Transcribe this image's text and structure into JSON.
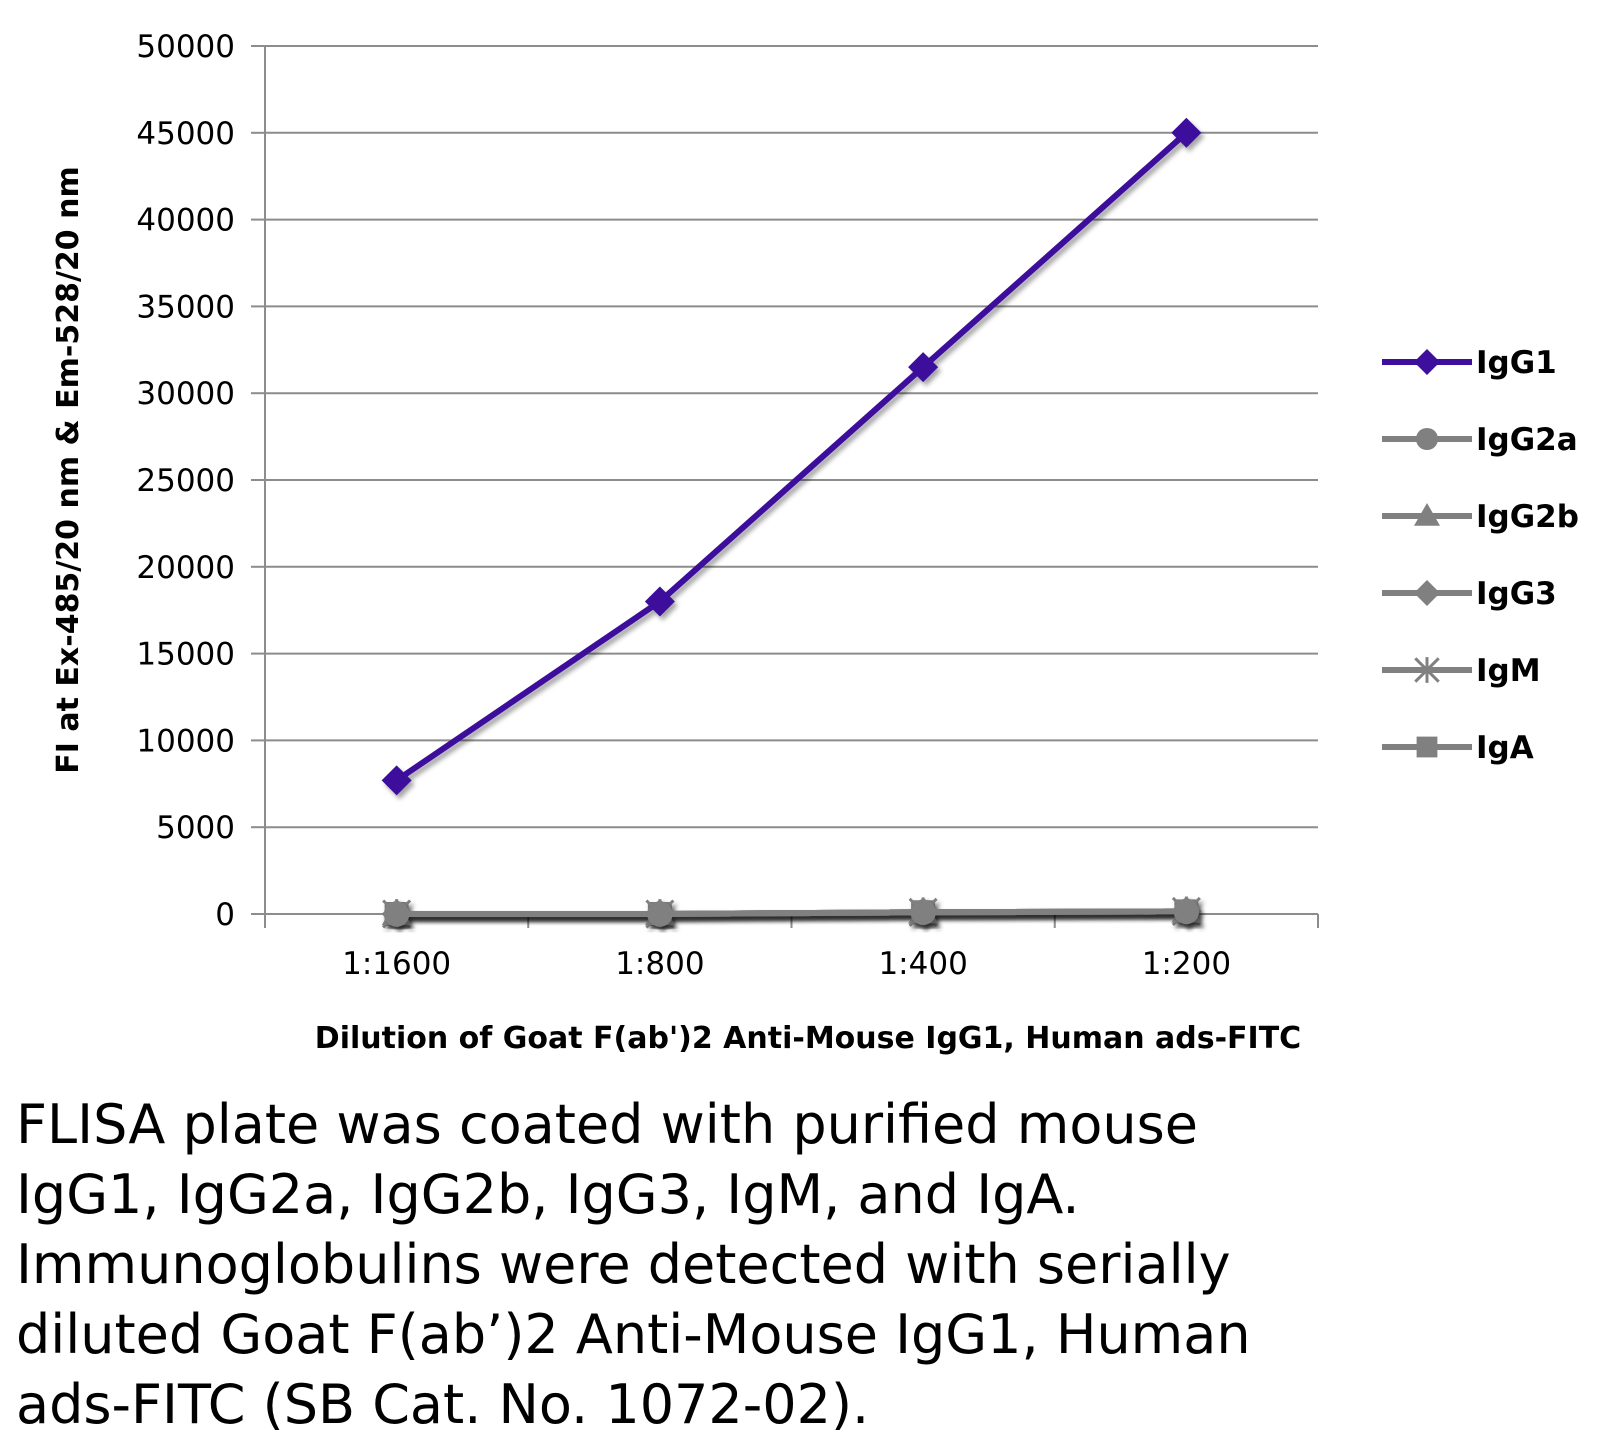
{
  "chart_data": {
    "type": "line",
    "categories": [
      "1:1600",
      "1:800",
      "1:400",
      "1:200"
    ],
    "xlabel": "Dilution of Goat F(ab')2 Anti-Mouse IgG1, Human ads-FITC",
    "ylabel": "FI at Ex-485/20 nm & Em-528/20 nm",
    "ylim": [
      0,
      50000
    ],
    "yticks": [
      0,
      5000,
      10000,
      15000,
      20000,
      25000,
      30000,
      35000,
      40000,
      45000,
      50000
    ],
    "grid": true,
    "legend_position": "right",
    "series": [
      {
        "name": "IgG1",
        "values": [
          7700,
          18000,
          31500,
          45000
        ],
        "color": "#3d0f9c",
        "marker": "diamond"
      },
      {
        "name": "IgG2a",
        "values": [
          0,
          0,
          100,
          150
        ],
        "color": "#808080",
        "marker": "circle"
      },
      {
        "name": "IgG2b",
        "values": [
          0,
          0,
          100,
          150
        ],
        "color": "#808080",
        "marker": "triangle"
      },
      {
        "name": "IgG3",
        "values": [
          0,
          0,
          100,
          150
        ],
        "color": "#808080",
        "marker": "diamond"
      },
      {
        "name": "IgM",
        "values": [
          0,
          0,
          100,
          150
        ],
        "color": "#808080",
        "marker": "asterisk"
      },
      {
        "name": "IgA",
        "values": [
          0,
          0,
          100,
          150
        ],
        "color": "#808080",
        "marker": "square"
      }
    ]
  },
  "caption": "FLISA plate was coated with purified mouse\nIgG1, IgG2a, IgG2b, IgG3, IgM, and IgA.\nImmunoglobulins were detected with serially\ndiluted Goat F(ab’)2 Anti-Mouse IgG1, Human\nads-FITC (SB Cat. No. 1072-02)."
}
